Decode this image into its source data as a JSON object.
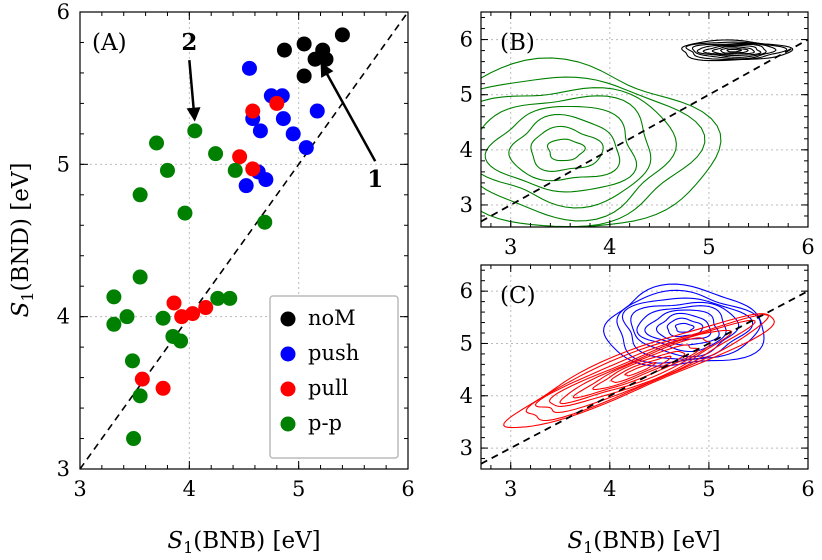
{
  "chart_data": [
    {
      "panel": "(A)",
      "type": "scatter",
      "xlabel": "S1(BNB) [eV]",
      "ylabel": "S1(BND) [eV]",
      "xlim": [
        3,
        6
      ],
      "ylim": [
        3,
        6
      ],
      "xticks": [
        "3",
        "4",
        "5",
        "6"
      ],
      "yticks": [
        "3",
        "4",
        "5",
        "6"
      ],
      "grid": true,
      "reference_line": {
        "style": "dashed",
        "x": [
          3,
          6
        ],
        "y": [
          3,
          6
        ]
      },
      "legend_position": "bottom-right",
      "series": [
        {
          "name": "noM",
          "color": "#000000",
          "points": [
            [
              4.87,
              5.75
            ],
            [
              5.05,
              5.79
            ],
            [
              5.22,
              5.75
            ],
            [
              5.4,
              5.85
            ],
            [
              5.05,
              5.58
            ],
            [
              5.15,
              5.69
            ],
            [
              5.25,
              5.69
            ]
          ]
        },
        {
          "name": "push",
          "color": "#0000ff",
          "points": [
            [
              4.55,
              5.63
            ],
            [
              4.75,
              5.45
            ],
            [
              4.85,
              5.45
            ],
            [
              4.58,
              5.3
            ],
            [
              4.65,
              5.22
            ],
            [
              4.95,
              5.2
            ],
            [
              4.86,
              5.3
            ],
            [
              5.17,
              5.35
            ],
            [
              5.07,
              5.11
            ],
            [
              4.63,
              4.95
            ],
            [
              4.52,
              4.86
            ],
            [
              4.7,
              4.9
            ]
          ]
        },
        {
          "name": "pull",
          "color": "#ff0000",
          "points": [
            [
              4.8,
              5.4
            ],
            [
              4.58,
              5.35
            ],
            [
              4.46,
              5.05
            ],
            [
              4.58,
              4.97
            ],
            [
              3.86,
              4.09
            ],
            [
              3.93,
              4.0
            ],
            [
              4.03,
              4.02
            ],
            [
              4.15,
              4.06
            ],
            [
              3.57,
              3.59
            ],
            [
              3.76,
              3.53
            ]
          ]
        },
        {
          "name": "p-p",
          "color": "#008000",
          "points": [
            [
              4.05,
              5.22
            ],
            [
              3.7,
              5.14
            ],
            [
              4.24,
              5.07
            ],
            [
              3.8,
              4.96
            ],
            [
              4.42,
              4.96
            ],
            [
              3.55,
              4.8
            ],
            [
              3.96,
              4.68
            ],
            [
              4.69,
              4.62
            ],
            [
              3.55,
              4.26
            ],
            [
              3.31,
              4.13
            ],
            [
              4.26,
              4.12
            ],
            [
              4.37,
              4.12
            ],
            [
              3.43,
              4.0
            ],
            [
              3.76,
              3.99
            ],
            [
              3.31,
              3.95
            ],
            [
              3.85,
              3.87
            ],
            [
              3.92,
              3.84
            ],
            [
              3.48,
              3.71
            ],
            [
              3.55,
              3.48
            ],
            [
              3.49,
              3.2
            ]
          ]
        }
      ],
      "annotations": [
        {
          "text": "1",
          "arrow_tip": [
            5.2,
            5.67
          ],
          "text_pos": [
            5.7,
            4.85
          ]
        },
        {
          "text": "2",
          "arrow_tip": [
            4.05,
            5.28
          ],
          "text_pos": [
            4.0,
            5.75
          ]
        }
      ]
    },
    {
      "panel": "(B)",
      "type": "contour",
      "xlim": [
        2.7,
        6
      ],
      "ylim": [
        2.6,
        6.5
      ],
      "xticks": [
        "3",
        "4",
        "5",
        "6"
      ],
      "yticks": [
        "3",
        "4",
        "5",
        "6"
      ],
      "grid": true,
      "reference_line": {
        "style": "dashed",
        "x": [
          2.7,
          6
        ],
        "y": [
          2.7,
          6
        ]
      },
      "series": [
        {
          "name": "",
          "color": "#000000",
          "center": [
            5.25,
            5.8
          ],
          "radius": [
            0.55,
            0.18
          ]
        },
        {
          "name": "",
          "color": "#008000",
          "center": [
            3.55,
            4.0
          ],
          "radius": [
            1.45,
            1.55
          ]
        }
      ]
    },
    {
      "panel": "(C)",
      "type": "contour",
      "xlabel": "S1(BNB) [eV]",
      "xlim": [
        2.7,
        6
      ],
      "ylim": [
        2.6,
        6.5
      ],
      "xticks": [
        "3",
        "4",
        "5",
        "6"
      ],
      "yticks": [
        "3",
        "4",
        "5",
        "6"
      ],
      "grid": true,
      "reference_line": {
        "style": "dashed",
        "x": [
          2.7,
          6
        ],
        "y": [
          2.7,
          6
        ]
      },
      "series": [
        {
          "name": "",
          "color": "#0000ff",
          "center": [
            4.75,
            5.3
          ],
          "radius": [
            0.8,
            0.75
          ]
        },
        {
          "name": "",
          "color": "#ff0000",
          "center": [
            4.3,
            4.5
          ],
          "radius": [
            1.35,
            0.4
          ],
          "tilt": 1.0
        }
      ]
    }
  ]
}
